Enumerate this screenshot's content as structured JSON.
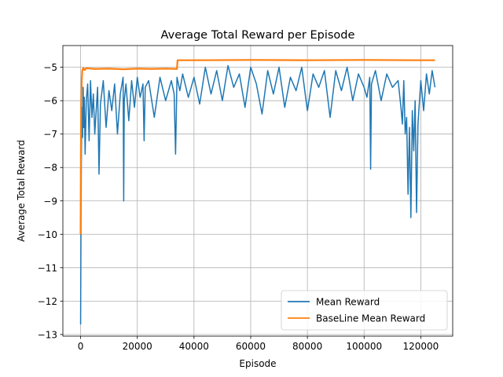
{
  "chart_data": {
    "type": "line",
    "title": "Average Total Reward per Episode",
    "xlabel": "Episode",
    "ylabel": "Average Total Reward",
    "xlim": [
      -6250,
      131250
    ],
    "ylim": [
      -13.05,
      -4.35
    ],
    "x_ticks": [
      0,
      20000,
      40000,
      60000,
      80000,
      100000,
      120000
    ],
    "x_tick_labels": [
      "0",
      "20000",
      "40000",
      "60000",
      "80000",
      "100000",
      "120000"
    ],
    "y_ticks": [
      -13,
      -12,
      -11,
      -10,
      -9,
      -8,
      -7,
      -6,
      -5
    ],
    "y_tick_labels": [
      "−13",
      "−12",
      "−11",
      "−10",
      "−9",
      "−8",
      "−7",
      "−6",
      "−5"
    ],
    "grid": true,
    "legend_position": "lower-right",
    "series": [
      {
        "name": "Mean Reward",
        "color": "#1f77b4",
        "x": [
          0,
          150,
          300,
          500,
          700,
          900,
          1100,
          1300,
          1600,
          2000,
          2500,
          3000,
          3500,
          4000,
          4500,
          5000,
          6000,
          6500,
          7000,
          8000,
          9000,
          10000,
          11000,
          12000,
          13000,
          14000,
          15000,
          15200,
          15400,
          16000,
          17000,
          18000,
          19000,
          20000,
          21000,
          22000,
          22400,
          22800,
          24000,
          26000,
          28000,
          30000,
          32000,
          33000,
          33500,
          34000,
          35000,
          36000,
          38000,
          40000,
          42000,
          44000,
          46000,
          48000,
          50000,
          52000,
          54000,
          56000,
          58000,
          60000,
          62000,
          64000,
          66000,
          68000,
          70000,
          72000,
          74000,
          76000,
          78000,
          80000,
          82000,
          84000,
          86000,
          88000,
          90000,
          92000,
          94000,
          96000,
          98000,
          100000,
          101000,
          102000,
          102300,
          102600,
          104000,
          106000,
          108000,
          110000,
          112000,
          113000,
          113500,
          114000,
          114500,
          115000,
          115500,
          116000,
          116500,
          117000,
          117500,
          118000,
          118500,
          119000,
          120000,
          121000,
          122000,
          123000,
          124000,
          125000
        ],
        "values": [
          -12.7,
          -9.5,
          -7.5,
          -6.2,
          -7.1,
          -5.6,
          -6.8,
          -5.9,
          -7.6,
          -6.0,
          -5.5,
          -7.2,
          -5.4,
          -6.5,
          -5.8,
          -7.0,
          -5.6,
          -8.2,
          -6.1,
          -5.4,
          -6.8,
          -5.7,
          -6.3,
          -5.5,
          -7.0,
          -5.8,
          -5.3,
          -9.0,
          -6.0,
          -5.5,
          -6.6,
          -5.4,
          -6.2,
          -5.3,
          -5.9,
          -5.5,
          -7.2,
          -5.6,
          -5.4,
          -6.5,
          -5.3,
          -6.0,
          -5.4,
          -5.8,
          -7.6,
          -5.3,
          -5.7,
          -5.2,
          -5.9,
          -5.3,
          -6.1,
          -5.0,
          -5.8,
          -5.1,
          -6.0,
          -4.95,
          -5.6,
          -5.2,
          -6.2,
          -5.0,
          -5.5,
          -6.4,
          -5.1,
          -5.8,
          -5.0,
          -6.2,
          -5.3,
          -5.7,
          -5.0,
          -6.3,
          -5.2,
          -5.6,
          -5.1,
          -6.5,
          -5.1,
          -5.7,
          -5.0,
          -6.0,
          -5.2,
          -5.6,
          -5.9,
          -5.3,
          -8.05,
          -5.5,
          -5.1,
          -6.0,
          -5.2,
          -5.6,
          -5.4,
          -6.2,
          -6.7,
          -5.4,
          -7.0,
          -6.5,
          -8.8,
          -6.8,
          -9.5,
          -6.3,
          -7.5,
          -6.0,
          -9.35,
          -6.7,
          -5.4,
          -6.3,
          -5.2,
          -5.8,
          -5.1,
          -5.6
        ]
      },
      {
        "name": "BaseLine Mean Reward",
        "color": "#ff7f0e",
        "x": [
          0,
          100,
          200,
          400,
          600,
          800,
          1000,
          1400,
          2000,
          5000,
          10000,
          15000,
          20000,
          25000,
          30000,
          34000,
          34200,
          40000,
          60000,
          80000,
          100000,
          120000,
          125000
        ],
        "values": [
          -10.0,
          -7.8,
          -6.2,
          -5.4,
          -5.1,
          -5.05,
          -5.02,
          -5.08,
          -5.03,
          -5.05,
          -5.04,
          -5.06,
          -5.04,
          -5.05,
          -5.04,
          -5.05,
          -4.79,
          -4.79,
          -4.78,
          -4.79,
          -4.78,
          -4.79,
          -4.79
        ]
      }
    ]
  }
}
